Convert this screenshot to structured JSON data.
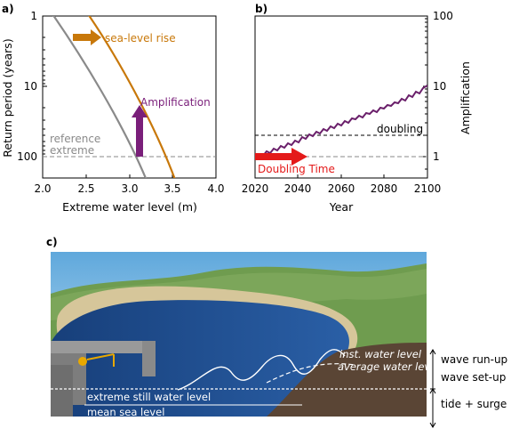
{
  "panel_a": {
    "label": "a)",
    "ylabel": "Return period (years)",
    "xlabel": "Extreme water level (m)",
    "x_ticks": [
      "2.0",
      "2.5",
      "3.0",
      "3.5",
      "4.0"
    ],
    "y_ticks": [
      "1",
      "10",
      "100"
    ],
    "annotations": {
      "sea_level_rise": "sea-level rise",
      "amplification": "Amplification",
      "reference_line1": "reference",
      "reference_line2": "extreme"
    },
    "colors": {
      "shifted_curve": "#c8780a",
      "reference_curve": "#8a8a8a",
      "amplification_arrow": "#7a1f7a"
    }
  },
  "panel_b": {
    "label": "b)",
    "xlabel": "Year",
    "ylabel_right": "Amplification",
    "x_ticks": [
      "2020",
      "2040",
      "2060",
      "2080",
      "2100"
    ],
    "y_ticks_right": [
      "1",
      "10",
      "100"
    ],
    "annotations": {
      "doubling": "doubling",
      "doubling_time": "Doubling Time"
    },
    "colors": {
      "series": "#6a1f6a",
      "arrow": "#e41a1a"
    }
  },
  "panel_c": {
    "label": "c)",
    "labels": {
      "inst_water_level": "inst. water level",
      "average_water_level": "average water level",
      "extreme_still_water_level": "extreme still water level",
      "mean_sea_level": "mean sea level",
      "wave_run_up": "wave run-up",
      "wave_set_up": "wave set-up",
      "tide_surge": "tide + surge"
    },
    "colors": {
      "sky": "#8fc3e6",
      "hills": "#6e9a4e",
      "sand": "#d6c69a",
      "sea": "#1f4f93",
      "ground": "#5a4535",
      "pier": "#8e8e8e"
    }
  }
}
